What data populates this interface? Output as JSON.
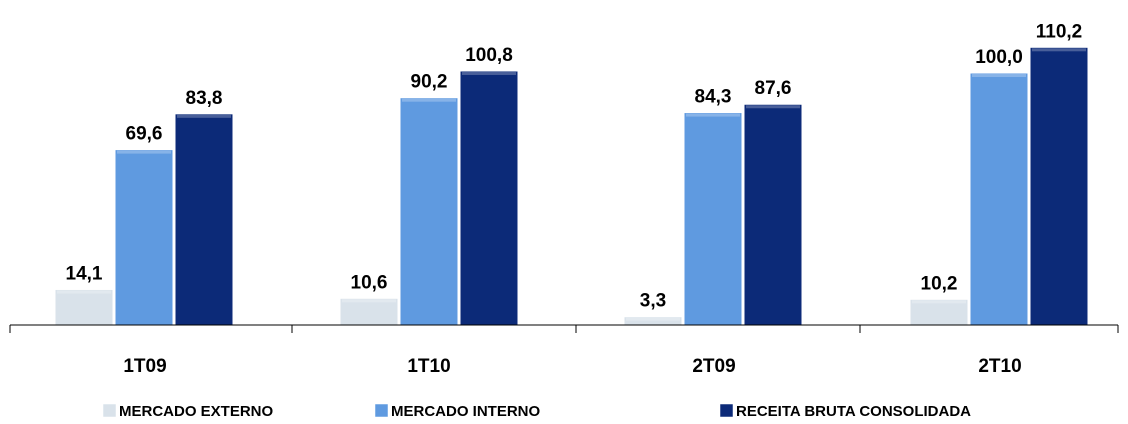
{
  "chart_data": {
    "type": "bar",
    "categories": [
      "1T09",
      "1T10",
      "2T09",
      "2T10"
    ],
    "series": [
      {
        "name": "MERCADO EXTERNO",
        "values": [
          14.1,
          10.6,
          3.3,
          10.2
        ],
        "labels": [
          "14,1",
          "10,6",
          "3,3",
          "10,2"
        ],
        "color": "#d9e2ea"
      },
      {
        "name": "MERCADO INTERNO",
        "values": [
          69.6,
          90.2,
          84.3,
          100.0
        ],
        "labels": [
          "69,6",
          "90,2",
          "84,3",
          "100,0"
        ],
        "color": "#5f9ae0"
      },
      {
        "name": "RECEITA BRUTA CONSOLIDADA",
        "values": [
          83.8,
          100.8,
          87.6,
          110.2
        ],
        "labels": [
          "83,8",
          "100,8",
          "87,6",
          "110,2"
        ],
        "color": "#0c2a78"
      }
    ],
    "title": "",
    "xlabel": "",
    "ylabel": "",
    "legend_position": "bottom"
  }
}
